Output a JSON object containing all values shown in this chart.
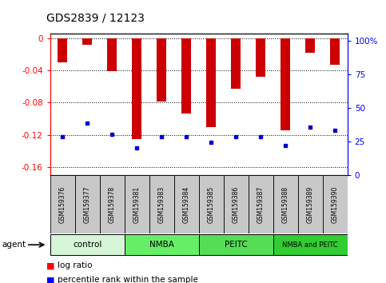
{
  "title": "GDS2839 / 12123",
  "samples": [
    "GSM159376",
    "GSM159377",
    "GSM159378",
    "GSM159381",
    "GSM159383",
    "GSM159384",
    "GSM159385",
    "GSM159386",
    "GSM159387",
    "GSM159388",
    "GSM159389",
    "GSM159390"
  ],
  "log_ratio": [
    -0.03,
    -0.008,
    -0.041,
    -0.125,
    -0.079,
    -0.093,
    -0.11,
    -0.063,
    -0.048,
    -0.114,
    -0.018,
    -0.033
  ],
  "percentile_rank": [
    28,
    38,
    30,
    20,
    28,
    28,
    24,
    28,
    28,
    22,
    35,
    33
  ],
  "groups": [
    {
      "label": "control",
      "start": 0,
      "end": 3,
      "color": "#d6f5d6"
    },
    {
      "label": "NMBA",
      "start": 3,
      "end": 6,
      "color": "#66ee66"
    },
    {
      "label": "PEITC",
      "start": 6,
      "end": 9,
      "color": "#66ee66"
    },
    {
      "label": "NMBA and PEITC",
      "start": 9,
      "end": 12,
      "color": "#33cc33"
    }
  ],
  "bar_color": "#cc0000",
  "blue_color": "#0000cc",
  "ylim_left": [
    -0.17,
    0.005
  ],
  "ylim_right": [
    0,
    105
  ],
  "yticks_left": [
    0,
    -0.04,
    -0.08,
    -0.12,
    -0.16
  ],
  "yticks_right": [
    0,
    25,
    50,
    75,
    100
  ],
  "bg_color": "#ffffff",
  "plot_bg": "#ffffff",
  "legend_log": "log ratio",
  "legend_pct": "percentile rank within the sample",
  "agent_label": "agent",
  "sample_box_color": "#c8c8c8",
  "bar_width": 0.4
}
